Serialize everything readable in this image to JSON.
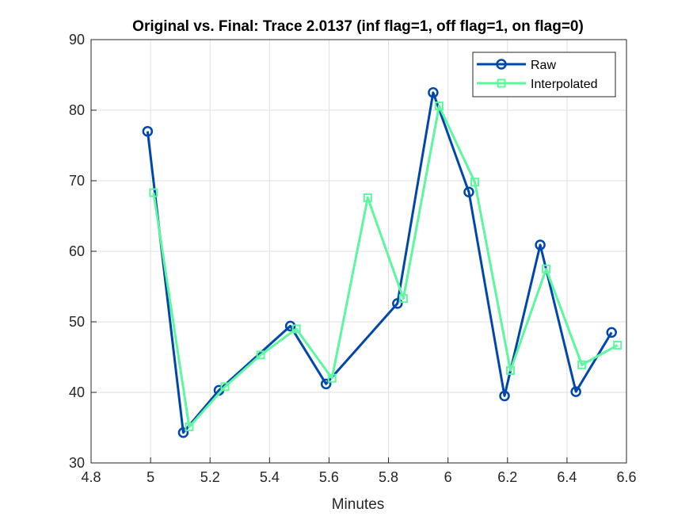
{
  "chart_data": {
    "type": "line",
    "title": "Original vs. Final: Trace 2.0137 (inf flag=1, off flag=1, on flag=0)",
    "xlabel": "Minutes",
    "ylabel": "",
    "xlim": [
      4.8,
      6.6
    ],
    "ylim": [
      30,
      90
    ],
    "xticks": [
      "4.8",
      "5",
      "5.2",
      "5.4",
      "5.6",
      "5.8",
      "6",
      "6.2",
      "6.4",
      "6.6"
    ],
    "yticks": [
      "30",
      "40",
      "50",
      "60",
      "70",
      "80",
      "90"
    ],
    "grid": true,
    "legend_position": "top-right",
    "series": [
      {
        "name": "Raw",
        "color": "#0047AB",
        "marker": "circle",
        "x": [
          4.99,
          5.11,
          5.23,
          5.47,
          5.59,
          5.83,
          5.95,
          6.07,
          6.19,
          6.31,
          6.43,
          6.55
        ],
        "values": [
          77.0,
          34.3,
          40.3,
          49.4,
          41.2,
          52.6,
          82.5,
          68.4,
          39.5,
          60.9,
          40.1,
          48.5
        ]
      },
      {
        "name": "Interpolated",
        "color": "#5CF79E",
        "marker": "square",
        "x": [
          5.01,
          5.13,
          5.25,
          5.37,
          5.49,
          5.61,
          5.73,
          5.85,
          5.97,
          6.09,
          6.21,
          6.33,
          6.45,
          6.57
        ],
        "values": [
          68.3,
          35.1,
          40.8,
          45.3,
          49.0,
          42.0,
          67.6,
          53.3,
          80.6,
          69.8,
          43.1,
          57.5,
          43.9,
          46.7
        ]
      }
    ]
  }
}
